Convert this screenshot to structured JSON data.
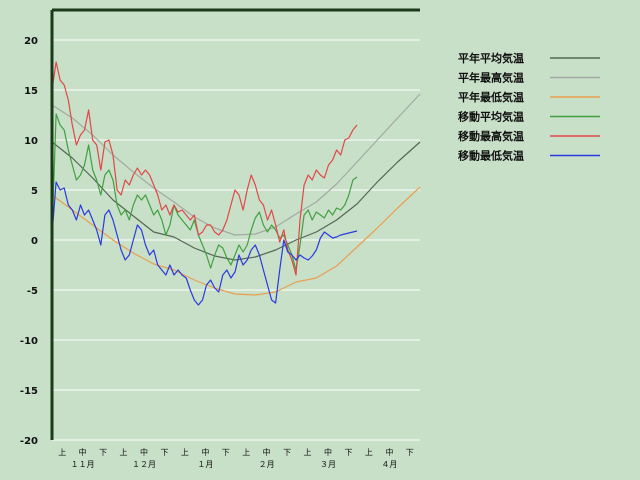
{
  "chart_data": {
    "type": "line",
    "title": "",
    "xlabel": "",
    "ylabel": "",
    "ylim": [
      -20,
      23
    ],
    "yticks": [
      20,
      15,
      10,
      5,
      0,
      -5,
      -10,
      -15,
      -20
    ],
    "grid": true,
    "legend_position": "top-right",
    "x_sub_ticks": [
      "上",
      "中",
      "下",
      "上",
      "中",
      "下",
      "上",
      "中",
      "下",
      "上",
      "中",
      "下",
      "上",
      "中",
      "下",
      "上",
      "中",
      "下"
    ],
    "x_months": [
      "１１月",
      "１２月",
      "１月",
      "２月",
      "３月",
      "４月"
    ],
    "x_day_range": [
      0,
      181
    ],
    "series": [
      {
        "name": "平年平均気温",
        "color": "#556655",
        "x": [
          0,
          10,
          20,
          30,
          40,
          50,
          60,
          70,
          80,
          90,
          100,
          110,
          120,
          130,
          140,
          150,
          160,
          170,
          181
        ],
        "y": [
          9.8,
          8.2,
          6.2,
          4.0,
          2.4,
          0.8,
          0.3,
          -0.8,
          -1.6,
          -2.0,
          -1.7,
          -1.0,
          0.0,
          0.8,
          2.0,
          3.6,
          5.8,
          7.8,
          9.8
        ]
      },
      {
        "name": "平年最高気温",
        "color": "#a3aaa3",
        "x": [
          0,
          10,
          20,
          30,
          40,
          50,
          60,
          70,
          80,
          90,
          100,
          110,
          120,
          130,
          140,
          150,
          160,
          170,
          181
        ],
        "y": [
          13.5,
          12.2,
          10.5,
          8.5,
          6.8,
          5.2,
          3.8,
          2.3,
          1.2,
          0.5,
          0.6,
          1.3,
          2.6,
          3.8,
          5.6,
          7.8,
          10.0,
          12.2,
          14.6
        ]
      },
      {
        "name": "平年最低気温",
        "color": "#e8a050",
        "x": [
          0,
          10,
          20,
          30,
          40,
          50,
          60,
          70,
          80,
          90,
          100,
          110,
          120,
          130,
          140,
          150,
          160,
          170,
          181
        ],
        "y": [
          4.5,
          3.0,
          1.5,
          0.0,
          -1.3,
          -2.4,
          -3.0,
          -4.0,
          -4.8,
          -5.4,
          -5.5,
          -5.2,
          -4.2,
          -3.8,
          -2.6,
          -0.7,
          1.2,
          3.2,
          5.3
        ]
      },
      {
        "name": "移動平均気温",
        "color": "#40a040",
        "x": [
          0,
          2,
          4,
          6,
          8,
          10,
          12,
          14,
          16,
          18,
          20,
          22,
          24,
          26,
          28,
          30,
          32,
          34,
          36,
          38,
          40,
          42,
          44,
          46,
          48,
          50,
          52,
          54,
          56,
          58,
          60,
          62,
          64,
          66,
          68,
          70,
          72,
          74,
          76,
          78,
          80,
          82,
          84,
          86,
          88,
          90,
          92,
          94,
          96,
          98,
          100,
          102,
          104,
          106,
          108,
          110,
          112,
          114,
          116,
          118,
          120,
          122,
          124,
          126,
          128,
          130,
          132,
          134,
          136,
          138,
          140,
          142,
          144,
          146,
          148,
          150
        ],
        "y": [
          0.5,
          12.6,
          11.5,
          11.0,
          9.0,
          7.5,
          6.0,
          6.5,
          7.5,
          9.5,
          7.0,
          6.0,
          4.5,
          6.5,
          7.0,
          6.0,
          3.5,
          2.5,
          3.0,
          2.0,
          3.5,
          4.5,
          4.0,
          4.5,
          3.5,
          2.5,
          3.0,
          2.0,
          0.5,
          1.5,
          3.5,
          2.5,
          2.0,
          1.5,
          1.0,
          2.0,
          0.5,
          -0.5,
          -1.5,
          -2.8,
          -1.5,
          -0.5,
          -0.8,
          -1.8,
          -2.5,
          -1.5,
          -0.5,
          -1.2,
          -0.5,
          1.0,
          2.2,
          2.8,
          1.5,
          0.8,
          1.5,
          1.0,
          0.2,
          0.5,
          -0.5,
          -1.5,
          -3.0,
          -0.5,
          2.5,
          3.0,
          2.0,
          2.8,
          2.5,
          2.2,
          3.0,
          2.5,
          3.2,
          3.0,
          3.5,
          4.5,
          6.0,
          6.3
        ]
      },
      {
        "name": "移動最高気温",
        "color": "#e04848",
        "x": [
          0,
          2,
          4,
          6,
          8,
          10,
          12,
          14,
          16,
          18,
          20,
          22,
          24,
          26,
          28,
          30,
          32,
          34,
          36,
          38,
          40,
          42,
          44,
          46,
          48,
          50,
          52,
          54,
          56,
          58,
          60,
          62,
          64,
          66,
          68,
          70,
          72,
          74,
          76,
          78,
          80,
          82,
          84,
          86,
          88,
          90,
          92,
          94,
          96,
          98,
          100,
          102,
          104,
          106,
          108,
          110,
          112,
          114,
          116,
          118,
          120,
          122,
          124,
          126,
          128,
          130,
          132,
          134,
          136,
          138,
          140,
          142,
          144,
          146,
          148,
          150
        ],
        "y": [
          15.0,
          17.8,
          16.0,
          15.5,
          14.0,
          11.5,
          9.5,
          10.5,
          11.0,
          13.0,
          10.0,
          9.5,
          7.0,
          9.8,
          10.0,
          8.5,
          5.0,
          4.5,
          6.0,
          5.5,
          6.5,
          7.2,
          6.5,
          7.0,
          6.5,
          5.5,
          4.5,
          3.0,
          3.5,
          2.5,
          3.5,
          2.8,
          3.0,
          2.5,
          2.0,
          2.5,
          0.5,
          0.8,
          1.5,
          1.5,
          0.8,
          0.5,
          1.0,
          2.0,
          3.5,
          5.0,
          4.5,
          3.0,
          5.0,
          6.5,
          5.5,
          4.0,
          3.5,
          2.0,
          3.0,
          1.5,
          -0.2,
          1.0,
          -1.0,
          -2.0,
          -3.5,
          2.0,
          5.5,
          6.5,
          6.0,
          7.0,
          6.5,
          6.2,
          7.5,
          8.0,
          9.0,
          8.5,
          10.0,
          10.2,
          11.0,
          11.5
        ]
      },
      {
        "name": "移動最低気温",
        "color": "#2a3ae0",
        "x": [
          0,
          2,
          4,
          6,
          8,
          10,
          12,
          14,
          16,
          18,
          20,
          22,
          24,
          26,
          28,
          30,
          32,
          34,
          36,
          38,
          40,
          42,
          44,
          46,
          48,
          50,
          52,
          54,
          56,
          58,
          60,
          62,
          64,
          66,
          68,
          70,
          72,
          74,
          76,
          78,
          80,
          82,
          84,
          86,
          88,
          90,
          92,
          94,
          96,
          98,
          100,
          102,
          104,
          106,
          108,
          110,
          112,
          114,
          116,
          118,
          120,
          122,
          124,
          126,
          128,
          130,
          132,
          134,
          136,
          138,
          140,
          142,
          144,
          146,
          148,
          150
        ],
        "y": [
          0.5,
          5.8,
          5.0,
          5.2,
          3.5,
          3.0,
          2.0,
          3.5,
          2.5,
          3.0,
          2.0,
          1.0,
          -0.5,
          2.5,
          3.0,
          2.0,
          0.5,
          -1.0,
          -2.0,
          -1.5,
          0.0,
          1.5,
          1.0,
          -0.5,
          -1.5,
          -1.0,
          -2.5,
          -3.0,
          -3.5,
          -2.5,
          -3.5,
          -3.0,
          -3.5,
          -3.8,
          -5.0,
          -6.0,
          -6.5,
          -6.0,
          -4.5,
          -4.0,
          -4.8,
          -5.2,
          -3.5,
          -3.0,
          -3.8,
          -3.2,
          -1.5,
          -2.5,
          -2.0,
          -1.0,
          -0.5,
          -1.5,
          -3.0,
          -4.5,
          -6.0,
          -6.3,
          -3.0,
          0.0,
          -1.2,
          -1.5,
          -2.0,
          -1.5,
          -1.8,
          -2.0,
          -1.6,
          -1.0,
          0.2,
          0.8,
          0.5,
          0.2,
          0.3,
          0.5,
          0.6,
          0.7,
          0.8,
          0.9
        ]
      }
    ]
  }
}
